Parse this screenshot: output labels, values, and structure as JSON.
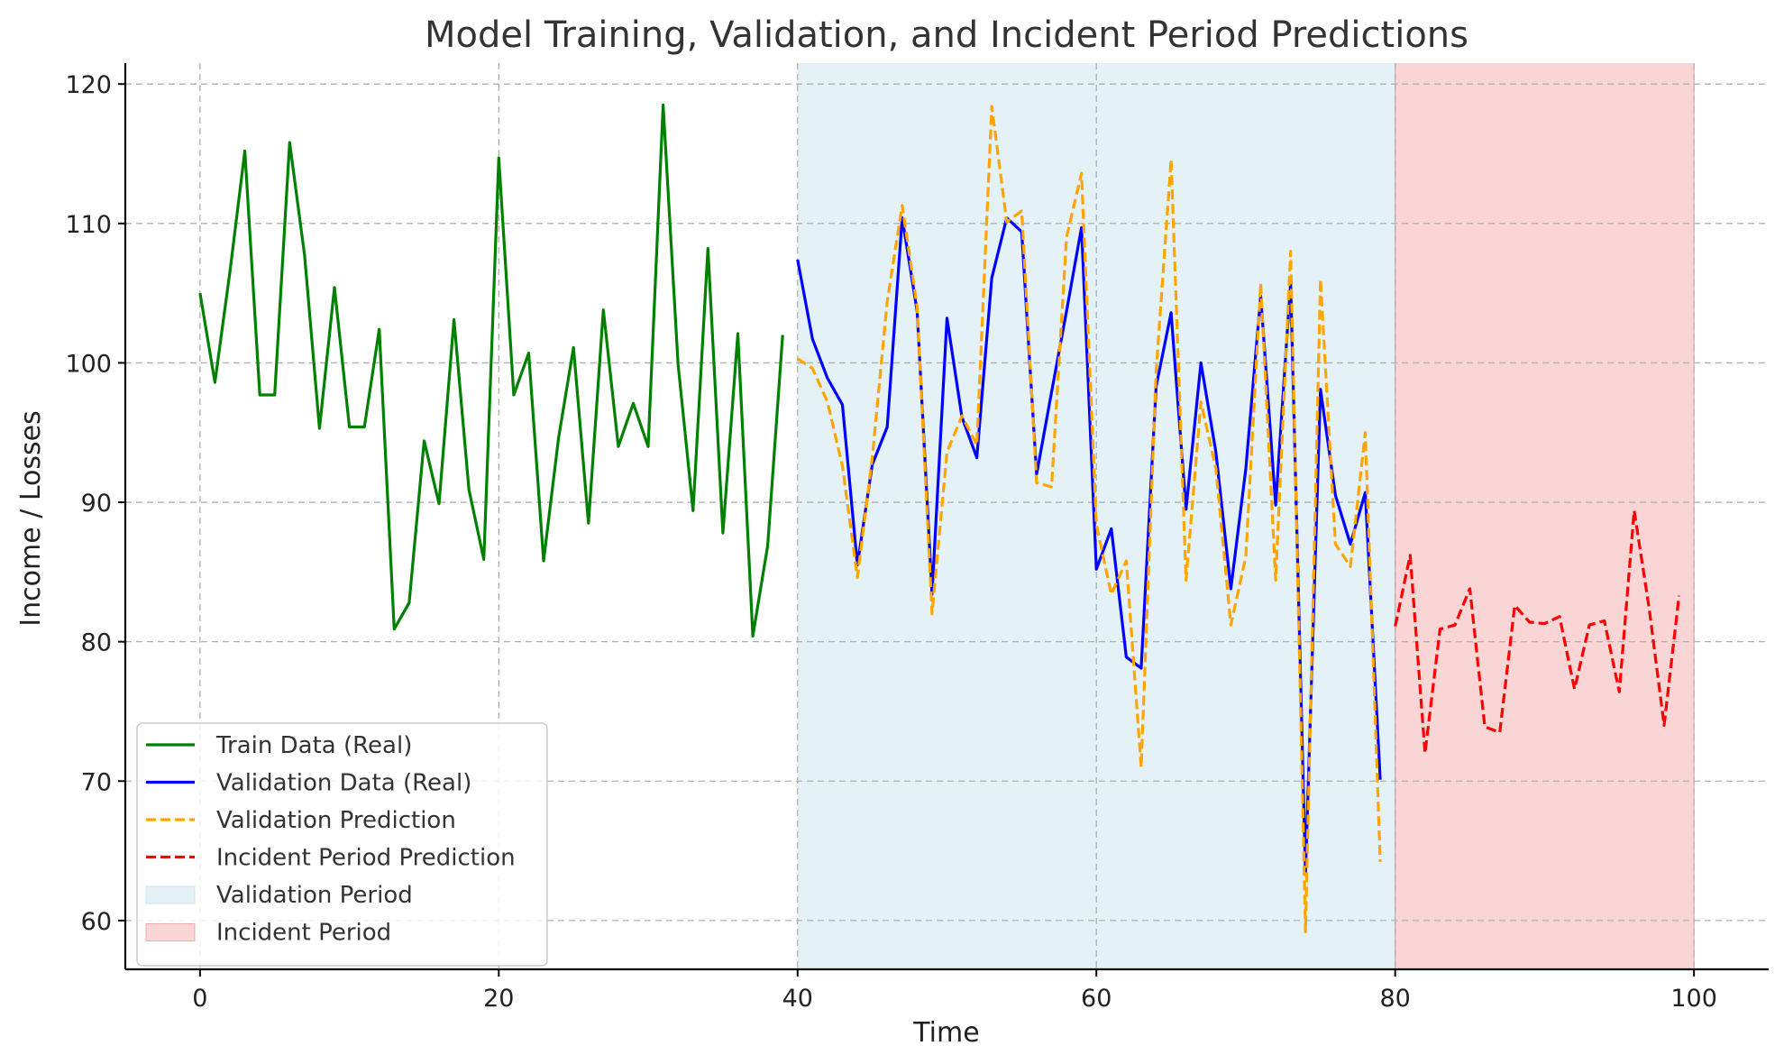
{
  "chart_data": {
    "type": "line",
    "title": "Model Training, Validation, and Incident Period Predictions",
    "xlabel": "Time",
    "ylabel": "Income / Losses",
    "xlim": [
      -5,
      105
    ],
    "ylim": [
      56.5,
      121.5
    ],
    "xticks": [
      0,
      20,
      40,
      60,
      80,
      100
    ],
    "yticks": [
      60,
      70,
      80,
      90,
      100,
      110,
      120
    ],
    "grid": true,
    "legend_position": "lower-left",
    "spans": [
      {
        "name": "Validation Period",
        "x0": 40,
        "x1": 80,
        "color": "#add8e6",
        "opacity": 0.33
      },
      {
        "name": "Incident Period",
        "x0": 80,
        "x1": 100,
        "color": "#f08080",
        "opacity": 0.33
      }
    ],
    "series": [
      {
        "name": "Train Data (Real)",
        "color": "#008000",
        "dash": "solid",
        "x_start": 0,
        "values": [
          105.0,
          98.6,
          106.5,
          115.2,
          97.7,
          97.7,
          115.8,
          107.7,
          95.3,
          105.4,
          95.4,
          95.4,
          102.4,
          80.9,
          82.8,
          94.4,
          89.9,
          103.1,
          90.9,
          85.9,
          114.7,
          97.7,
          100.7,
          85.8,
          94.6,
          101.1,
          88.5,
          103.8,
          94.0,
          97.1,
          94.0,
          118.5,
          99.9,
          89.4,
          108.2,
          87.8,
          102.1,
          80.4,
          86.9,
          102.0
        ]
      },
      {
        "name": "Validation Data (Real)",
        "color": "#0000ff",
        "dash": "solid",
        "x_start": 40,
        "values": [
          107.4,
          101.7,
          98.9,
          97.0,
          85.5,
          92.7,
          95.4,
          110.4,
          103.7,
          83.4,
          103.2,
          96.1,
          93.2,
          106.1,
          110.4,
          109.4,
          92.0,
          97.9,
          103.7,
          109.7,
          85.2,
          88.1,
          78.9,
          78.1,
          98.3,
          103.6,
          89.5,
          100.0,
          93.6,
          83.8,
          92.4,
          104.8,
          89.8,
          105.8,
          63.3,
          98.1,
          90.5,
          87.0,
          90.7,
          70.1
        ]
      },
      {
        "name": "Validation Prediction",
        "color": "#ffa500",
        "dash": "dashed",
        "x_start": 40,
        "values": [
          100.3,
          99.6,
          97.2,
          92.6,
          84.6,
          93.2,
          104.4,
          111.3,
          104.0,
          82.0,
          93.6,
          96.2,
          94.1,
          118.4,
          110.1,
          110.9,
          91.4,
          91.1,
          109.0,
          113.6,
          88.4,
          83.4,
          85.8,
          71.0,
          99.4,
          114.6,
          84.4,
          97.2,
          92.4,
          81.2,
          86.1,
          105.7,
          84.4,
          108.0,
          59.2,
          106.0,
          87.0,
          85.4,
          95.0,
          64.2
        ]
      },
      {
        "name": "Incident Period Prediction",
        "color": "#ff0000",
        "dash": "dashed",
        "x_start": 80,
        "values": [
          81.1,
          86.2,
          72.0,
          80.9,
          81.2,
          83.8,
          73.9,
          73.5,
          82.6,
          81.4,
          81.3,
          81.8,
          76.6,
          81.2,
          81.5,
          76.4,
          89.4,
          82.4,
          74.0,
          83.3
        ]
      }
    ]
  }
}
